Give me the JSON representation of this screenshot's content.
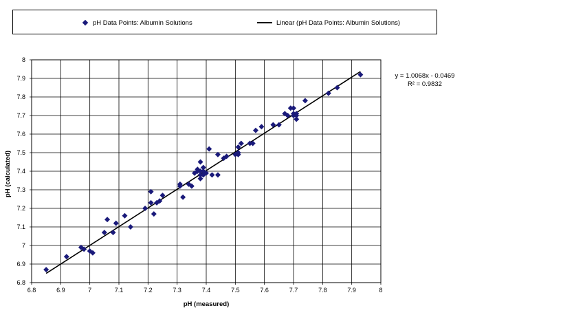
{
  "legend": {
    "scatter_label": "pH Data Points: Albumin Solutions",
    "line_label": "Linear (pH Data Points: Albumin Solutions)"
  },
  "annotation": {
    "equation": "y = 1.0068x - 0.0469",
    "r_squared": "R² = 0.9832"
  },
  "colors": {
    "marker": "#1a1a7a",
    "trendline": "#000000",
    "grid": "#000000"
  },
  "chart_data": {
    "type": "scatter",
    "title": "",
    "xlabel": "pH (measured)",
    "ylabel": "pH (calculated)",
    "xlim": [
      6.8,
      8
    ],
    "ylim": [
      6.8,
      8
    ],
    "xticks": [
      "6.8",
      "6.9",
      "7",
      "7.1",
      "7.2",
      "7.3",
      "7.4",
      "7.5",
      "7.6",
      "7.7",
      "7.8",
      "7.9",
      "8"
    ],
    "yticks": [
      "6.8",
      "6.9",
      "7",
      "7.1",
      "7.2",
      "7.3",
      "7.4",
      "7.5",
      "7.6",
      "7.7",
      "7.8",
      "7.9",
      "8"
    ],
    "grid": true,
    "legend_position": "top",
    "series": [
      {
        "name": "pH Data Points: Albumin Solutions",
        "type": "scatter",
        "points": [
          [
            6.85,
            6.87
          ],
          [
            6.92,
            6.94
          ],
          [
            6.97,
            6.99
          ],
          [
            6.98,
            6.98
          ],
          [
            7.0,
            6.97
          ],
          [
            7.01,
            6.96
          ],
          [
            7.05,
            7.07
          ],
          [
            7.06,
            7.14
          ],
          [
            7.08,
            7.07
          ],
          [
            7.09,
            7.12
          ],
          [
            7.12,
            7.16
          ],
          [
            7.14,
            7.1
          ],
          [
            7.19,
            7.2
          ],
          [
            7.21,
            7.29
          ],
          [
            7.21,
            7.23
          ],
          [
            7.22,
            7.17
          ],
          [
            7.23,
            7.23
          ],
          [
            7.24,
            7.24
          ],
          [
            7.25,
            7.27
          ],
          [
            7.31,
            7.32
          ],
          [
            7.31,
            7.33
          ],
          [
            7.32,
            7.26
          ],
          [
            7.34,
            7.33
          ],
          [
            7.35,
            7.32
          ],
          [
            7.36,
            7.39
          ],
          [
            7.37,
            7.4
          ],
          [
            7.37,
            7.41
          ],
          [
            7.38,
            7.38
          ],
          [
            7.38,
            7.4
          ],
          [
            7.38,
            7.36
          ],
          [
            7.38,
            7.45
          ],
          [
            7.39,
            7.42
          ],
          [
            7.39,
            7.4
          ],
          [
            7.39,
            7.38
          ],
          [
            7.4,
            7.39
          ],
          [
            7.41,
            7.52
          ],
          [
            7.42,
            7.38
          ],
          [
            7.44,
            7.38
          ],
          [
            7.44,
            7.49
          ],
          [
            7.46,
            7.47
          ],
          [
            7.47,
            7.48
          ],
          [
            7.5,
            7.49
          ],
          [
            7.51,
            7.5
          ],
          [
            7.51,
            7.49
          ],
          [
            7.51,
            7.53
          ],
          [
            7.52,
            7.55
          ],
          [
            7.55,
            7.55
          ],
          [
            7.56,
            7.55
          ],
          [
            7.57,
            7.62
          ],
          [
            7.59,
            7.64
          ],
          [
            7.63,
            7.65
          ],
          [
            7.65,
            7.65
          ],
          [
            7.67,
            7.71
          ],
          [
            7.68,
            7.7
          ],
          [
            7.69,
            7.74
          ],
          [
            7.7,
            7.74
          ],
          [
            7.7,
            7.71
          ],
          [
            7.7,
            7.7
          ],
          [
            7.71,
            7.7
          ],
          [
            7.71,
            7.68
          ],
          [
            7.71,
            7.71
          ],
          [
            7.74,
            7.78
          ],
          [
            7.82,
            7.82
          ],
          [
            7.85,
            7.85
          ],
          [
            7.93,
            7.92
          ]
        ]
      },
      {
        "name": "Linear (pH Data Points: Albumin Solutions)",
        "type": "line",
        "slope": 1.0068,
        "intercept": -0.0469,
        "x_range": [
          6.85,
          7.93
        ]
      }
    ]
  }
}
